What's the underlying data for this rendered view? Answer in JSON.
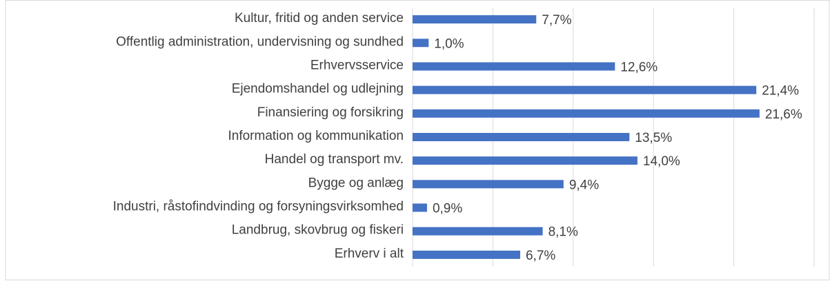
{
  "chart_data": {
    "type": "bar",
    "orientation": "horizontal",
    "categories": [
      "Kultur, fritid og anden service",
      "Offentlig administration, undervisning og sundhed",
      "Erhvervsservice",
      "Ejendomshandel og udlejning",
      "Finansiering og forsikring",
      "Information og kommunikation",
      "Handel og transport mv.",
      "Bygge og anlæg",
      "Industri, råstofindvinding og forsyningsvirksomhed",
      "Landbrug, skovbrug og fiskeri",
      "Erhverv i alt"
    ],
    "values": [
      7.7,
      1.0,
      12.6,
      21.4,
      21.6,
      13.5,
      14.0,
      9.4,
      0.9,
      8.1,
      6.7
    ],
    "value_labels": [
      "7,7%",
      "1,0%",
      "12,6%",
      "21,4%",
      "21,6%",
      "13,5%",
      "14,0%",
      "9,4%",
      "0,9%",
      "8,1%",
      "6,7%"
    ],
    "color": "#4472c4",
    "xlim": [
      0,
      25
    ],
    "xticks": [
      0,
      5,
      10,
      15,
      20,
      25
    ],
    "grid": true
  }
}
